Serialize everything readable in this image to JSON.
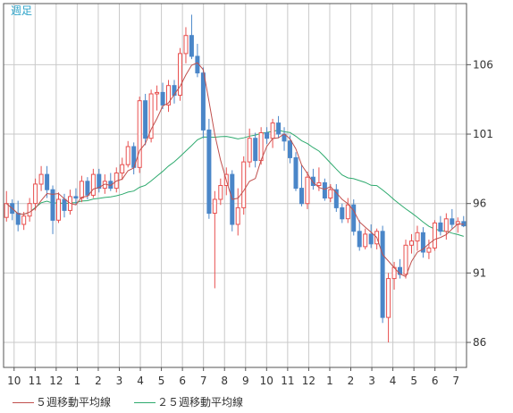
{
  "period_label": "週足",
  "chart_data": {
    "type": "candlestick",
    "period": "週足",
    "ylim": [
      84.2,
      110.4
    ],
    "y_ticks": [
      86,
      91,
      96,
      101,
      106
    ],
    "grid": true,
    "x_tick_labels": [
      "10",
      "11",
      "12",
      "1",
      "2",
      "3",
      "4",
      "5",
      "6",
      "7",
      "8",
      "9",
      "10",
      "11",
      "12",
      "1",
      "2",
      "3",
      "4",
      "5",
      "6",
      "7"
    ],
    "candle_up_color": "#e8504f",
    "candle_down_color": "#4a86c8",
    "ma5_color": "#c0504d",
    "ma25_color": "#2eaa6e",
    "candles": [
      {
        "o": 95.0,
        "h": 96.9,
        "l": 94.7,
        "c": 96.0
      },
      {
        "o": 96.0,
        "h": 96.3,
        "l": 94.8,
        "c": 95.3
      },
      {
        "o": 95.3,
        "h": 96.2,
        "l": 94.0,
        "c": 94.5
      },
      {
        "o": 94.5,
        "h": 95.4,
        "l": 94.1,
        "c": 95.1
      },
      {
        "o": 95.1,
        "h": 96.4,
        "l": 94.7,
        "c": 96.0
      },
      {
        "o": 96.0,
        "h": 97.8,
        "l": 95.5,
        "c": 97.4
      },
      {
        "o": 97.4,
        "h": 98.7,
        "l": 96.9,
        "c": 98.1
      },
      {
        "o": 98.1,
        "h": 98.7,
        "l": 96.4,
        "c": 97.0
      },
      {
        "o": 97.0,
        "h": 97.3,
        "l": 93.8,
        "c": 94.8
      },
      {
        "o": 94.8,
        "h": 96.8,
        "l": 94.6,
        "c": 96.3
      },
      {
        "o": 96.3,
        "h": 96.7,
        "l": 95.0,
        "c": 95.5
      },
      {
        "o": 95.5,
        "h": 97.0,
        "l": 95.2,
        "c": 96.5
      },
      {
        "o": 96.5,
        "h": 97.1,
        "l": 95.9,
        "c": 96.4
      },
      {
        "o": 96.4,
        "h": 98.0,
        "l": 96.1,
        "c": 97.6
      },
      {
        "o": 97.6,
        "h": 97.9,
        "l": 96.3,
        "c": 96.6
      },
      {
        "o": 96.6,
        "h": 98.5,
        "l": 96.4,
        "c": 98.1
      },
      {
        "o": 98.1,
        "h": 98.5,
        "l": 96.8,
        "c": 97.1
      },
      {
        "o": 97.1,
        "h": 98.1,
        "l": 96.7,
        "c": 97.6
      },
      {
        "o": 97.6,
        "h": 98.2,
        "l": 96.9,
        "c": 97.1
      },
      {
        "o": 97.1,
        "h": 98.6,
        "l": 96.8,
        "c": 98.2
      },
      {
        "o": 98.2,
        "h": 99.3,
        "l": 97.7,
        "c": 98.8
      },
      {
        "o": 98.8,
        "h": 100.5,
        "l": 98.6,
        "c": 100.1
      },
      {
        "o": 100.1,
        "h": 100.4,
        "l": 98.1,
        "c": 98.6
      },
      {
        "o": 98.6,
        "h": 103.7,
        "l": 98.2,
        "c": 103.4
      },
      {
        "o": 103.4,
        "h": 103.9,
        "l": 100.2,
        "c": 100.7
      },
      {
        "o": 100.7,
        "h": 104.2,
        "l": 100.4,
        "c": 103.9
      },
      {
        "o": 103.9,
        "h": 104.5,
        "l": 102.7,
        "c": 104.0
      },
      {
        "o": 104.0,
        "h": 104.7,
        "l": 102.8,
        "c": 103.1
      },
      {
        "o": 103.1,
        "h": 104.9,
        "l": 102.6,
        "c": 104.5
      },
      {
        "o": 104.5,
        "h": 104.9,
        "l": 103.2,
        "c": 103.8
      },
      {
        "o": 103.8,
        "h": 107.2,
        "l": 103.4,
        "c": 106.8
      },
      {
        "o": 106.8,
        "h": 108.7,
        "l": 106.1,
        "c": 108.1
      },
      {
        "o": 108.1,
        "h": 109.6,
        "l": 106.4,
        "c": 106.6
      },
      {
        "o": 106.6,
        "h": 107.5,
        "l": 105.1,
        "c": 105.4
      },
      {
        "o": 105.4,
        "h": 105.8,
        "l": 100.7,
        "c": 101.3
      },
      {
        "o": 101.3,
        "h": 102.1,
        "l": 94.9,
        "c": 95.3
      },
      {
        "o": 95.3,
        "h": 96.9,
        "l": 89.9,
        "c": 96.3
      },
      {
        "o": 96.3,
        "h": 97.8,
        "l": 95.9,
        "c": 97.3
      },
      {
        "o": 97.3,
        "h": 98.6,
        "l": 96.6,
        "c": 98.1
      },
      {
        "o": 98.1,
        "h": 98.4,
        "l": 94.0,
        "c": 94.5
      },
      {
        "o": 94.5,
        "h": 97.1,
        "l": 93.7,
        "c": 95.7
      },
      {
        "o": 95.7,
        "h": 99.4,
        "l": 95.2,
        "c": 99.0
      },
      {
        "o": 99.0,
        "h": 101.4,
        "l": 98.6,
        "c": 100.7
      },
      {
        "o": 100.7,
        "h": 101.1,
        "l": 98.6,
        "c": 99.1
      },
      {
        "o": 99.1,
        "h": 101.5,
        "l": 98.8,
        "c": 101.1
      },
      {
        "o": 101.1,
        "h": 101.5,
        "l": 100.3,
        "c": 100.7
      },
      {
        "o": 100.7,
        "h": 102.1,
        "l": 100.0,
        "c": 101.8
      },
      {
        "o": 101.8,
        "h": 102.3,
        "l": 100.7,
        "c": 101.0
      },
      {
        "o": 101.0,
        "h": 101.5,
        "l": 99.8,
        "c": 100.5
      },
      {
        "o": 100.5,
        "h": 100.9,
        "l": 98.9,
        "c": 99.3
      },
      {
        "o": 99.3,
        "h": 99.7,
        "l": 96.9,
        "c": 97.1
      },
      {
        "o": 97.1,
        "h": 98.8,
        "l": 95.8,
        "c": 96.0
      },
      {
        "o": 96.0,
        "h": 98.3,
        "l": 95.6,
        "c": 97.9
      },
      {
        "o": 97.9,
        "h": 98.5,
        "l": 97.0,
        "c": 97.3
      },
      {
        "o": 97.3,
        "h": 98.6,
        "l": 96.9,
        "c": 97.5
      },
      {
        "o": 97.5,
        "h": 97.8,
        "l": 96.2,
        "c": 96.4
      },
      {
        "o": 96.4,
        "h": 97.4,
        "l": 96.1,
        "c": 97.0
      },
      {
        "o": 97.0,
        "h": 97.4,
        "l": 95.4,
        "c": 95.7
      },
      {
        "o": 95.7,
        "h": 96.0,
        "l": 94.6,
        "c": 94.9
      },
      {
        "o": 94.9,
        "h": 96.4,
        "l": 94.6,
        "c": 95.9
      },
      {
        "o": 95.9,
        "h": 96.3,
        "l": 93.7,
        "c": 94.0
      },
      {
        "o": 94.0,
        "h": 94.8,
        "l": 92.6,
        "c": 92.9
      },
      {
        "o": 92.9,
        "h": 94.2,
        "l": 92.7,
        "c": 93.8
      },
      {
        "o": 93.8,
        "h": 94.5,
        "l": 92.8,
        "c": 93.1
      },
      {
        "o": 93.1,
        "h": 94.2,
        "l": 92.7,
        "c": 94.0
      },
      {
        "o": 94.0,
        "h": 94.4,
        "l": 87.4,
        "c": 87.8
      },
      {
        "o": 87.8,
        "h": 91.0,
        "l": 86.0,
        "c": 90.6
      },
      {
        "o": 90.6,
        "h": 91.8,
        "l": 89.8,
        "c": 91.4
      },
      {
        "o": 91.4,
        "h": 92.0,
        "l": 90.6,
        "c": 90.9
      },
      {
        "o": 90.9,
        "h": 93.4,
        "l": 90.6,
        "c": 93.0
      },
      {
        "o": 93.0,
        "h": 93.8,
        "l": 92.4,
        "c": 93.3
      },
      {
        "o": 93.3,
        "h": 94.4,
        "l": 92.6,
        "c": 93.9
      },
      {
        "o": 93.9,
        "h": 94.3,
        "l": 92.1,
        "c": 92.5
      },
      {
        "o": 92.5,
        "h": 93.4,
        "l": 92.0,
        "c": 92.8
      },
      {
        "o": 92.8,
        "h": 94.8,
        "l": 92.6,
        "c": 94.6
      },
      {
        "o": 94.6,
        "h": 95.1,
        "l": 93.7,
        "c": 94.0
      },
      {
        "o": 94.0,
        "h": 95.3,
        "l": 93.4,
        "c": 94.9
      },
      {
        "o": 94.9,
        "h": 95.6,
        "l": 94.2,
        "c": 94.5
      },
      {
        "o": 94.5,
        "h": 95.0,
        "l": 93.9,
        "c": 94.7
      },
      {
        "o": 94.7,
        "h": 95.1,
        "l": 94.3,
        "c": 94.4
      }
    ]
  },
  "legend": {
    "ma5_label": "５週移動平均線",
    "ma25_label": "２５週移動平均線"
  }
}
